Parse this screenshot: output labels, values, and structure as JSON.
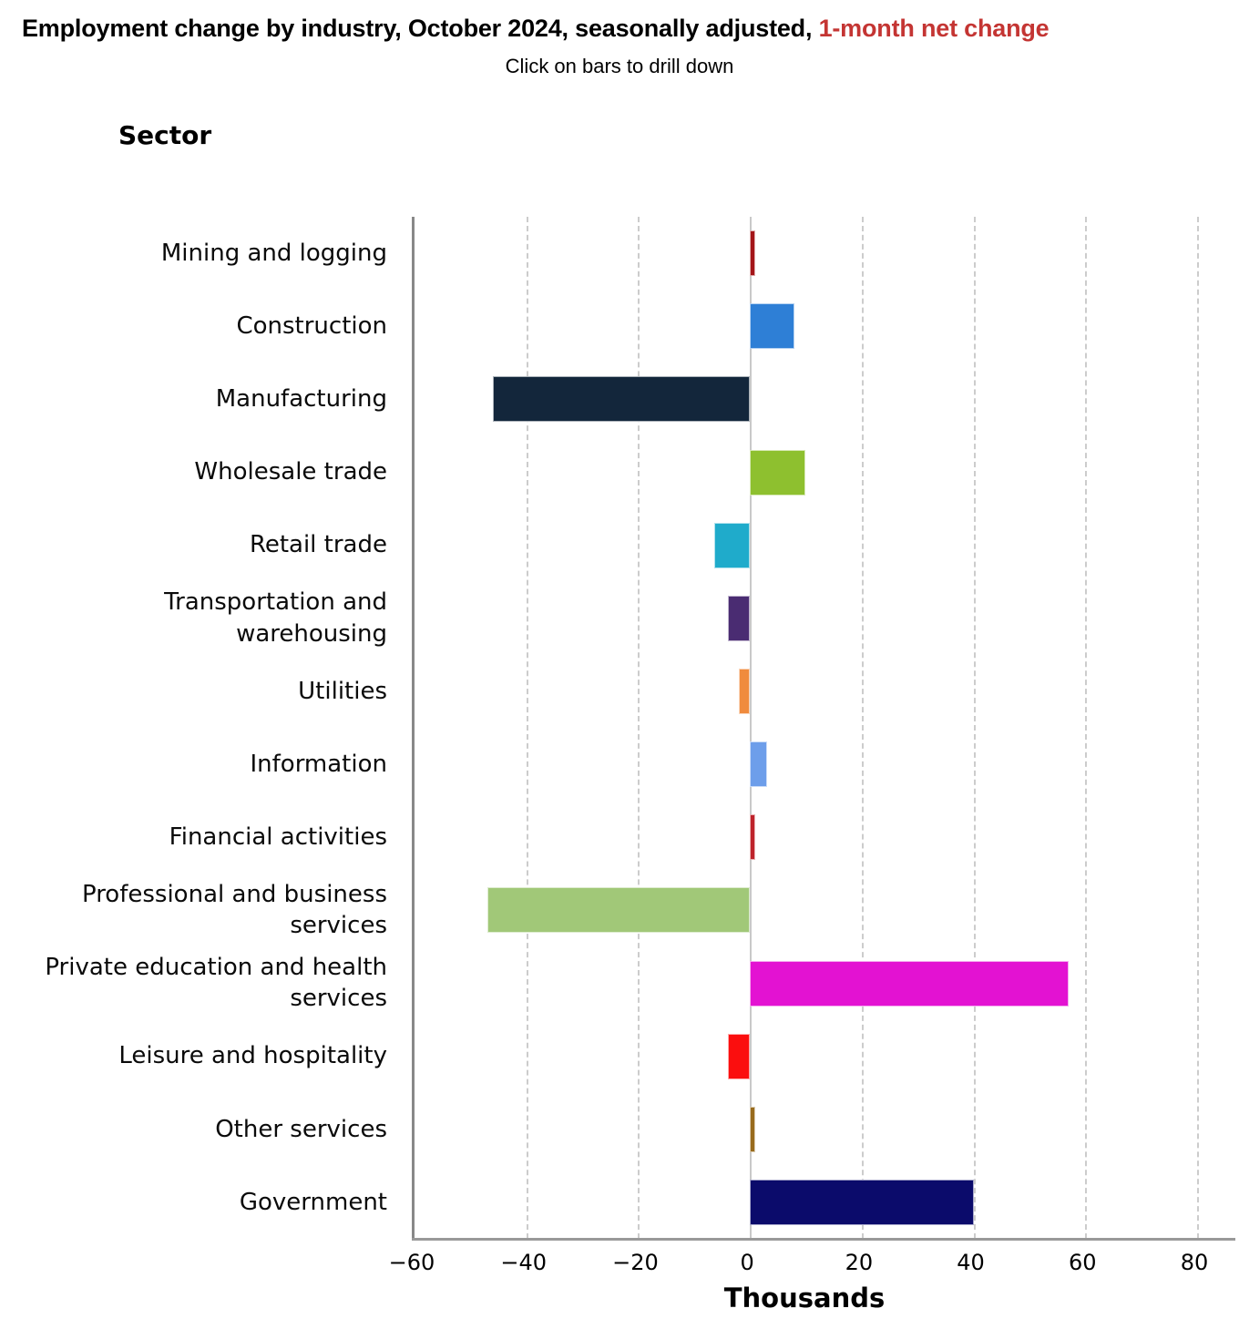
{
  "header": {
    "title_main": "Employment change by industry, October 2024, seasonally adjusted, ",
    "title_highlight": "1-month net change",
    "subtitle": "Click on bars to drill down"
  },
  "styles": {
    "title_highlight_color": "#C43533",
    "axis_line_color": "#999999",
    "gridline_color": "#cccccc"
  },
  "chart_data": {
    "type": "bar",
    "orientation": "horizontal",
    "title": "Employment change by industry, October 2024, seasonally adjusted, 1-month net change",
    "subtitle": "Click on bars to drill down",
    "y_axis_title": "Sector",
    "x_axis_title": "Thousands",
    "units": "Thousands",
    "xlim": [
      -60,
      80
    ],
    "x_tick_values": [
      -60,
      -40,
      -20,
      0,
      20,
      40,
      60,
      80
    ],
    "x_tick_labels": [
      "−60",
      "−40",
      "−20",
      "0",
      "20",
      "40",
      "60",
      "80"
    ],
    "grid": "vertical-dashed",
    "legend": "none",
    "categories": [
      "Mining and logging",
      "Construction",
      "Manufacturing",
      "Wholesale trade",
      "Retail trade",
      "Transportation and warehousing",
      "Utilities",
      "Information",
      "Financial activities",
      "Professional and business services",
      "Private education and health services",
      "Leisure and hospitality",
      "Other services",
      "Government"
    ],
    "values": [
      1,
      8,
      -46,
      10,
      -6.4,
      -4,
      -2,
      3,
      1,
      -47,
      57,
      -4,
      1,
      40
    ],
    "colors": [
      "#A41519",
      "#2E7FD6",
      "#13263B",
      "#8EC02F",
      "#1FABCB",
      "#4A2C72",
      "#F08B3D",
      "#6D9EEA",
      "#BE232B",
      "#A1C878",
      "#E312D2",
      "#FB0E0E",
      "#986B1D",
      "#0B0B6B"
    ]
  }
}
